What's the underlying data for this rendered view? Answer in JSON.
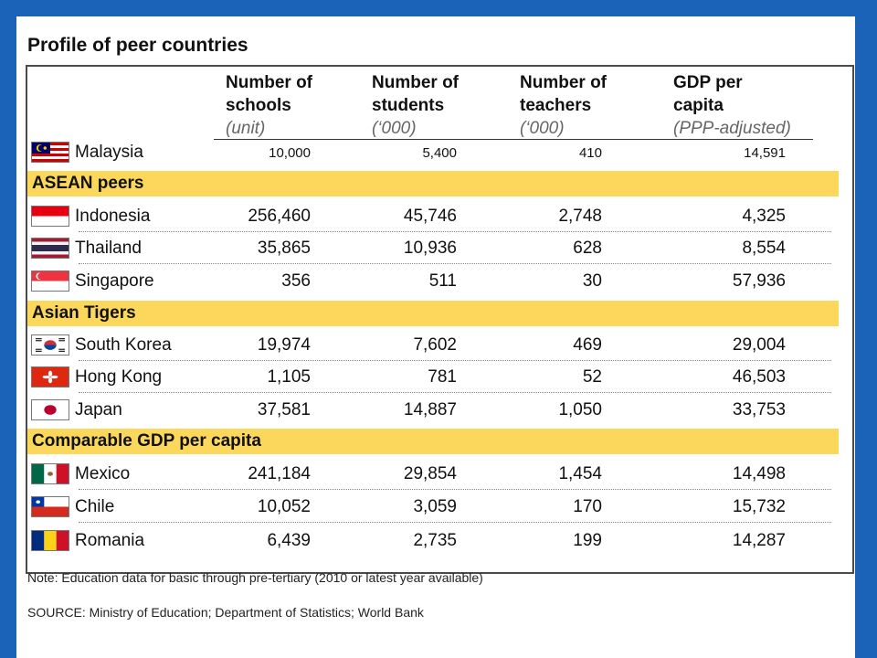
{
  "title": "Profile of peer countries",
  "columns": [
    {
      "line1": "Number of",
      "line2": "schools",
      "unit": "(unit)"
    },
    {
      "line1": "Number of",
      "line2": "students",
      "unit": "(‘000)"
    },
    {
      "line1": "Number of",
      "line2": "teachers",
      "unit": "(‘000)"
    },
    {
      "line1": "GDP per",
      "line2": "capita",
      "unit": "(PPP-adjusted)"
    }
  ],
  "base": {
    "country": "Malaysia",
    "flag": "malaysia-flag-icon",
    "values": [
      "10,000",
      "5,400",
      "410",
      "14,591"
    ]
  },
  "groups": [
    {
      "label": "ASEAN peers",
      "rows": [
        {
          "country": "Indonesia",
          "flag": "indonesia-flag-icon",
          "values": [
            "256,460",
            "45,746",
            "2,748",
            "4,325"
          ]
        },
        {
          "country": "Thailand",
          "flag": "thailand-flag-icon",
          "values": [
            "35,865",
            "10,936",
            "628",
            "8,554"
          ]
        },
        {
          "country": "Singapore",
          "flag": "singapore-flag-icon",
          "values": [
            "356",
            "511",
            "30",
            "57,936"
          ]
        }
      ]
    },
    {
      "label": "Asian Tigers",
      "rows": [
        {
          "country": "South Korea",
          "flag": "south-korea-flag-icon",
          "values": [
            "19,974",
            "7,602",
            "469",
            "29,004"
          ]
        },
        {
          "country": "Hong Kong",
          "flag": "hong-kong-flag-icon",
          "values": [
            "1,105",
            "781",
            "52",
            "46,503"
          ]
        },
        {
          "country": "Japan",
          "flag": "japan-flag-icon",
          "values": [
            "37,581",
            "14,887",
            "1,050",
            "33,753"
          ]
        }
      ]
    },
    {
      "label": "Comparable GDP per capita",
      "rows": [
        {
          "country": "Mexico",
          "flag": "mexico-flag-icon",
          "values": [
            "241,184",
            "29,854",
            "1,454",
            "14,498"
          ]
        },
        {
          "country": "Chile",
          "flag": "chile-flag-icon",
          "values": [
            "10,052",
            "3,059",
            "170",
            "15,732"
          ]
        },
        {
          "country": "Romania",
          "flag": "romania-flag-icon",
          "values": [
            "6,439",
            "2,735",
            "199",
            "14,287"
          ]
        }
      ]
    }
  ],
  "note": "Note: Education data for basic through pre-tertiary (2010 or latest year available)",
  "source": "SOURCE: Ministry of Education; Department of Statistics; World Bank",
  "colors": {
    "background": "#1a63b8",
    "band": "#fbd85b"
  }
}
